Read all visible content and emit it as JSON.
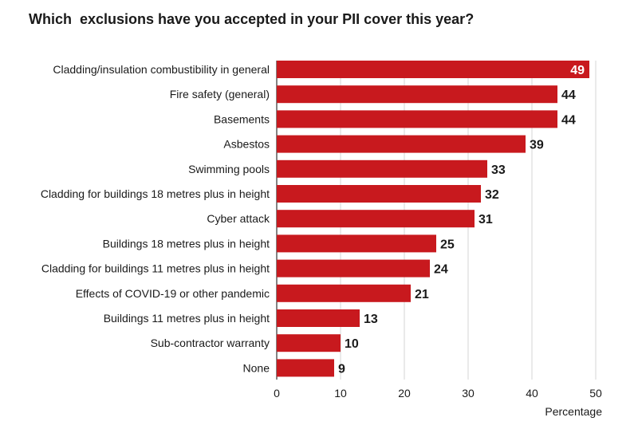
{
  "chart_data": {
    "type": "bar",
    "orientation": "horizontal",
    "title": "Which  exclusions have you accepted in your PII cover this year?",
    "xlabel": "Percentage",
    "ylabel": "",
    "xlim": [
      0,
      50
    ],
    "xticks": [
      "0",
      "10",
      "20",
      "30",
      "40",
      "50"
    ],
    "grid": "vertical",
    "bar_color": "#c8191e",
    "categories": [
      "Cladding/insulation combustibility in general",
      "Fire safety (general)",
      "Basements",
      "Asbestos",
      "Swimming pools",
      "Cladding for buildings 18 metres plus in height",
      "Cyber attack",
      "Buildings 18 metres plus in height",
      "Cladding for buildings 11 metres plus in height",
      "Effects of COVID-19 or other pandemic",
      "Buildings 11 metres plus in height",
      "Sub-contractor warranty",
      "None"
    ],
    "values": [
      49,
      44,
      44,
      39,
      33,
      32,
      31,
      25,
      24,
      21,
      13,
      10,
      9
    ]
  }
}
